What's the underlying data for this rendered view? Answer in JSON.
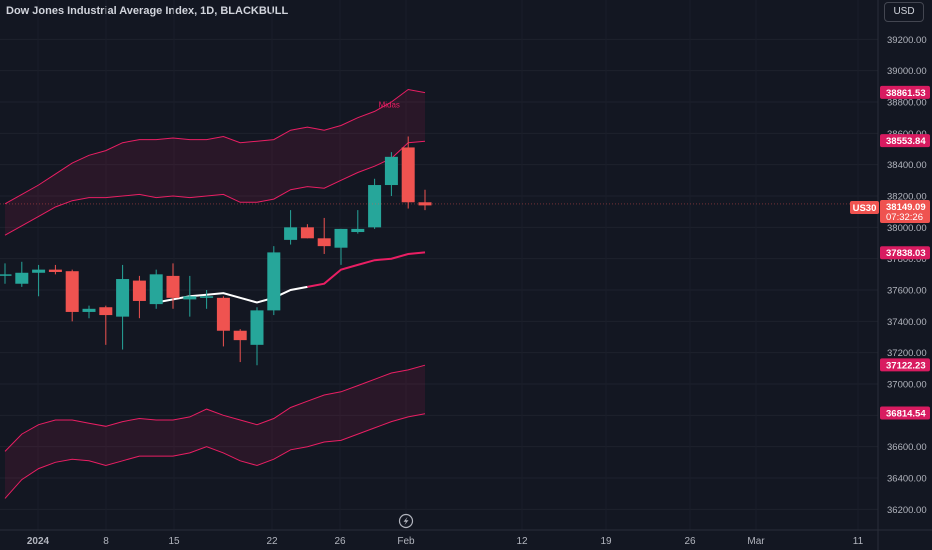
{
  "header": {
    "title": "Dow Jones Industrial Average Index, 1D, BLACKBULL",
    "currency": "USD"
  },
  "colors": {
    "background": "#131722",
    "up": "#26a69a",
    "down": "#ef5350",
    "band": "#e91e63",
    "vwap": "#ffffff"
  },
  "chart_data": {
    "type": "candlestick",
    "ylim": [
      36100,
      39400
    ],
    "y_ticks": [
      "39200.00",
      "39000.00",
      "38800.00",
      "38600.00",
      "38400.00",
      "38200.00",
      "38000.00",
      "37800.00",
      "37600.00",
      "37400.00",
      "37200.00",
      "37000.00",
      "36800.00",
      "36600.00",
      "36400.00",
      "36200.00"
    ],
    "x_ticks": [
      "2024",
      "8",
      "15",
      "22",
      "26",
      "Feb",
      "12",
      "19",
      "26",
      "Mar",
      "11"
    ],
    "symbol_label": "US30",
    "last_price": "38149.09",
    "countdown": "07:32:26",
    "indicator_label": "Midas",
    "level_labels": [
      "38861.53",
      "38553.84",
      "37838.03",
      "37122.23",
      "36814.54"
    ],
    "candles": [
      {
        "o": 37700,
        "h": 37770,
        "l": 37640,
        "c": 37700
      },
      {
        "o": 37640,
        "h": 37780,
        "l": 37620,
        "c": 37710
      },
      {
        "o": 37710,
        "h": 37760,
        "l": 37560,
        "c": 37730
      },
      {
        "o": 37730,
        "h": 37760,
        "l": 37700,
        "c": 37715
      },
      {
        "o": 37720,
        "h": 37730,
        "l": 37400,
        "c": 37460
      },
      {
        "o": 37460,
        "h": 37500,
        "l": 37420,
        "c": 37480
      },
      {
        "o": 37490,
        "h": 37500,
        "l": 37250,
        "c": 37440
      },
      {
        "o": 37430,
        "h": 37760,
        "l": 37220,
        "c": 37670
      },
      {
        "o": 37660,
        "h": 37690,
        "l": 37420,
        "c": 37530
      },
      {
        "o": 37510,
        "h": 37730,
        "l": 37480,
        "c": 37700
      },
      {
        "o": 37690,
        "h": 37770,
        "l": 37480,
        "c": 37550
      },
      {
        "o": 37540,
        "h": 37690,
        "l": 37430,
        "c": 37560
      },
      {
        "o": 37550,
        "h": 37600,
        "l": 37480,
        "c": 37560
      },
      {
        "o": 37550,
        "h": 37560,
        "l": 37240,
        "c": 37340
      },
      {
        "o": 37340,
        "h": 37350,
        "l": 37140,
        "c": 37280
      },
      {
        "o": 37250,
        "h": 37490,
        "l": 37120,
        "c": 37470
      },
      {
        "o": 37470,
        "h": 37880,
        "l": 37440,
        "c": 37840
      },
      {
        "o": 37920,
        "h": 38110,
        "l": 37890,
        "c": 38000
      },
      {
        "o": 38000,
        "h": 38020,
        "l": 37930,
        "c": 37930
      },
      {
        "o": 37930,
        "h": 38060,
        "l": 37830,
        "c": 37880
      },
      {
        "o": 37870,
        "h": 37990,
        "l": 37760,
        "c": 37990
      },
      {
        "o": 37970,
        "h": 38110,
        "l": 37960,
        "c": 37990
      },
      {
        "o": 38000,
        "h": 38310,
        "l": 37990,
        "c": 38270
      },
      {
        "o": 38270,
        "h": 38480,
        "l": 38200,
        "c": 38450
      },
      {
        "o": 38510,
        "h": 38580,
        "l": 38120,
        "c": 38160
      },
      {
        "o": 38160,
        "h": 38240,
        "l": 38110,
        "c": 38140
      }
    ],
    "band_upper_outer": [
      38150,
      38210,
      38270,
      38340,
      38410,
      38460,
      38490,
      38540,
      38560,
      38560,
      38570,
      38560,
      38560,
      38580,
      38540,
      38550,
      38560,
      38620,
      38640,
      38620,
      38650,
      38700,
      38740,
      38800,
      38880,
      38860
    ],
    "band_upper_inner": [
      37950,
      38010,
      38070,
      38130,
      38170,
      38190,
      38190,
      38200,
      38210,
      38190,
      38200,
      38190,
      38200,
      38210,
      38160,
      38160,
      38180,
      38240,
      38260,
      38250,
      38300,
      38350,
      38390,
      38440,
      38540,
      38550
    ],
    "band_lower_outer": [
      36570,
      36680,
      36740,
      36770,
      36770,
      36750,
      36730,
      36760,
      36780,
      36770,
      36770,
      36790,
      36840,
      36800,
      36770,
      36740,
      36780,
      36850,
      36890,
      36930,
      36950,
      36990,
      37030,
      37070,
      37090,
      37120
    ],
    "band_lower_inner": [
      36270,
      36390,
      36460,
      36500,
      36520,
      36510,
      36480,
      36510,
      36540,
      36540,
      36540,
      36560,
      36600,
      36560,
      36510,
      36480,
      36520,
      36580,
      36600,
      36630,
      36640,
      36680,
      36720,
      36760,
      36790,
      36810
    ],
    "vwap_line": [
      null,
      null,
      null,
      null,
      null,
      null,
      null,
      null,
      null,
      37520,
      37540,
      37560,
      37570,
      37580,
      37550,
      37520,
      37550,
      37600,
      37620,
      37640,
      37730,
      37760,
      37790,
      37800,
      37830,
      37840
    ],
    "vwap_white_until": 18
  }
}
